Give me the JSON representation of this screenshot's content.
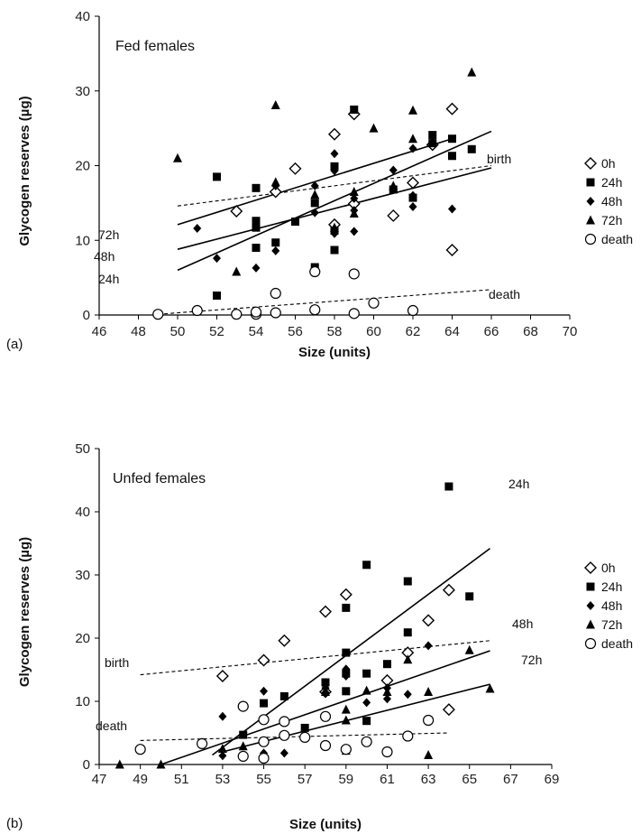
{
  "chart_data": [
    {
      "type": "scatter",
      "panel_label": "(a)",
      "title": "Fed females",
      "xlabel": "Size (units)",
      "ylabel": "Glycogen reserves (µg)",
      "xlim": [
        46,
        70
      ],
      "ylim": [
        0,
        40
      ],
      "x_ticks": [
        "46",
        "48",
        "50",
        "52",
        "54",
        "56",
        "58",
        "60",
        "62",
        "64",
        "66",
        "68",
        "70"
      ],
      "y_ticks": [
        "0",
        "10",
        "20",
        "30",
        "40"
      ],
      "grid": false,
      "legend": "right",
      "series": [
        {
          "name": "0h",
          "points": [
            [
              53,
              13.9
            ],
            [
              55,
              16.5
            ],
            [
              56,
              19.6
            ],
            [
              58,
              12.1
            ],
            [
              58,
              24.2
            ],
            [
              59,
              14.9
            ],
            [
              59,
              26.9
            ],
            [
              61,
              13.3
            ],
            [
              62,
              17.7
            ],
            [
              63,
              22.8
            ],
            [
              64,
              27.6
            ],
            [
              64,
              8.7
            ]
          ]
        },
        {
          "name": "24h",
          "points": [
            [
              52,
              18.5
            ],
            [
              52,
              2.6
            ],
            [
              54,
              17
            ],
            [
              54,
              12.6
            ],
            [
              54,
              11.7
            ],
            [
              54,
              9
            ],
            [
              55,
              9.7
            ],
            [
              56,
              12.5
            ],
            [
              57,
              15
            ],
            [
              57,
              6.4
            ],
            [
              58,
              19.9
            ],
            [
              58,
              8.7
            ],
            [
              58,
              11.3
            ],
            [
              59,
              27.5
            ],
            [
              61,
              16.8
            ],
            [
              62,
              15.7
            ],
            [
              63,
              24.1
            ],
            [
              63,
              23
            ],
            [
              64,
              23.6
            ],
            [
              64,
              21.3
            ],
            [
              65,
              22.2
            ]
          ]
        },
        {
          "name": "48h",
          "points": [
            [
              51,
              11.6
            ],
            [
              52,
              7.6
            ],
            [
              54,
              6.3
            ],
            [
              55,
              8.6
            ],
            [
              55,
              17.3
            ],
            [
              57,
              13.7
            ],
            [
              57,
              17.3
            ],
            [
              58,
              10.9
            ],
            [
              58,
              21.6
            ],
            [
              58,
              19.3
            ],
            [
              59,
              15.6
            ],
            [
              59,
              11.2
            ],
            [
              59,
              14
            ],
            [
              61,
              19.4
            ],
            [
              62,
              16
            ],
            [
              62,
              14.5
            ],
            [
              62,
              22.3
            ],
            [
              63,
              23.2
            ],
            [
              64,
              14.2
            ]
          ]
        },
        {
          "name": "72h",
          "points": [
            [
              50,
              21
            ],
            [
              53,
              5.8
            ],
            [
              55,
              28.1
            ],
            [
              55,
              17.8
            ],
            [
              57,
              16.1
            ],
            [
              58,
              11.7
            ],
            [
              59,
              13.6
            ],
            [
              59,
              16.5
            ],
            [
              60,
              25
            ],
            [
              61,
              17.3
            ],
            [
              62,
              23.6
            ],
            [
              62,
              27.4
            ],
            [
              65,
              32.5
            ]
          ]
        },
        {
          "name": "death",
          "points": [
            [
              49,
              0.1
            ],
            [
              51,
              0.6
            ],
            [
              53,
              0.1
            ],
            [
              54,
              0.1
            ],
            [
              54,
              0.4
            ],
            [
              55,
              0.3
            ],
            [
              55,
              2.9
            ],
            [
              57,
              5.8
            ],
            [
              57,
              0.7
            ],
            [
              59,
              5.5
            ],
            [
              59,
              0.2
            ],
            [
              60,
              1.6
            ],
            [
              62,
              0.6
            ]
          ]
        }
      ],
      "fit_lines": [
        {
          "label": "birth",
          "style": "dashed",
          "from": [
            50,
            14.6
          ],
          "to": [
            66,
            20
          ]
        },
        {
          "label": "72h",
          "style": "solid",
          "from": [
            50,
            12.1
          ],
          "to": [
            64,
            23.6
          ]
        },
        {
          "label": "48h",
          "style": "solid",
          "from": [
            50,
            8.8
          ],
          "to": [
            66,
            19.7
          ]
        },
        {
          "label": "24h",
          "style": "solid",
          "from": [
            50,
            6
          ],
          "to": [
            66,
            24.6
          ]
        },
        {
          "label": "death",
          "style": "dashed",
          "from": [
            49,
            0.1
          ],
          "to": [
            66,
            3.4
          ]
        }
      ]
    },
    {
      "type": "scatter",
      "panel_label": "(b)",
      "title": "Unfed females",
      "xlabel": "Size (units)",
      "ylabel": "Glycogen reserves (µg)",
      "xlim": [
        47,
        69
      ],
      "ylim": [
        0,
        50
      ],
      "x_ticks": [
        "47",
        "49",
        "51",
        "53",
        "55",
        "57",
        "59",
        "61",
        "63",
        "65",
        "67",
        "69"
      ],
      "y_ticks": [
        "0",
        "10",
        "20",
        "30",
        "40",
        "50"
      ],
      "grid": false,
      "legend": "right",
      "series": [
        {
          "name": "0h",
          "points": [
            [
              53,
              14
            ],
            [
              55,
              16.5
            ],
            [
              56,
              19.6
            ],
            [
              58,
              11.5
            ],
            [
              58,
              24.2
            ],
            [
              59,
              26.9
            ],
            [
              61,
              13.3
            ],
            [
              62,
              17.7
            ],
            [
              63,
              22.8
            ],
            [
              64,
              27.6
            ],
            [
              64,
              8.7
            ]
          ]
        },
        {
          "name": "24h",
          "points": [
            [
              54,
              4.7
            ],
            [
              55,
              9.7
            ],
            [
              56,
              10.8
            ],
            [
              57,
              5.8
            ],
            [
              58,
              13
            ],
            [
              59,
              24.8
            ],
            [
              59,
              17.7
            ],
            [
              59,
              14.4
            ],
            [
              59,
              11.6
            ],
            [
              60,
              31.6
            ],
            [
              60,
              14.4
            ],
            [
              60,
              6.9
            ],
            [
              61,
              15.9
            ],
            [
              62,
              29
            ],
            [
              62,
              20.9
            ],
            [
              64,
              44
            ],
            [
              65,
              26.6
            ]
          ]
        },
        {
          "name": "48h",
          "points": [
            [
              53,
              7.6
            ],
            [
              53,
              1.4
            ],
            [
              54,
              1.4
            ],
            [
              55,
              1.8
            ],
            [
              55,
              11.6
            ],
            [
              56,
              1.8
            ],
            [
              58,
              12.1
            ],
            [
              58,
              11.4
            ],
            [
              59,
              15.1
            ],
            [
              59,
              14
            ],
            [
              60,
              9.8
            ],
            [
              61,
              12.1
            ],
            [
              61,
              10.4
            ],
            [
              62,
              11.1
            ],
            [
              63,
              18.8
            ]
          ]
        },
        {
          "name": "72h",
          "points": [
            [
              48,
              0
            ],
            [
              50,
              0
            ],
            [
              53,
              2.5
            ],
            [
              54,
              2.9
            ],
            [
              58,
              11.5
            ],
            [
              59,
              7
            ],
            [
              59,
              8.7
            ],
            [
              59,
              2.2
            ],
            [
              60,
              11.7
            ],
            [
              61,
              11.5
            ],
            [
              62,
              16.6
            ],
            [
              63,
              11.5
            ],
            [
              63,
              1.5
            ],
            [
              65,
              18.1
            ],
            [
              66,
              12
            ]
          ]
        },
        {
          "name": "death",
          "points": [
            [
              49,
              2.4
            ],
            [
              52,
              3.3
            ],
            [
              54,
              9.2
            ],
            [
              54,
              1.3
            ],
            [
              55,
              7.1
            ],
            [
              55,
              3.6
            ],
            [
              55,
              1
            ],
            [
              56,
              4.6
            ],
            [
              56,
              6.8
            ],
            [
              57,
              4.3
            ],
            [
              58,
              7.6
            ],
            [
              58,
              3
            ],
            [
              59,
              2.4
            ],
            [
              60,
              3.6
            ],
            [
              61,
              2
            ],
            [
              62,
              4.5
            ],
            [
              63,
              7
            ]
          ]
        }
      ],
      "fit_lines": [
        {
          "label": "birth",
          "style": "dashed",
          "from": [
            49,
            14.2
          ],
          "to": [
            66,
            19.6
          ]
        },
        {
          "label": "death",
          "style": "dashed",
          "from": [
            49,
            3.8
          ],
          "to": [
            64,
            5
          ]
        },
        {
          "label": "24h",
          "style": "solid",
          "from": [
            52.5,
            1.5
          ],
          "to": [
            66,
            34.2
          ]
        },
        {
          "label": "48h",
          "style": "solid",
          "from": [
            50,
            0
          ],
          "to": [
            66,
            18
          ]
        },
        {
          "label": "72h",
          "style": "solid",
          "from": [
            53,
            2
          ],
          "to": [
            66,
            12.7
          ]
        }
      ]
    }
  ]
}
